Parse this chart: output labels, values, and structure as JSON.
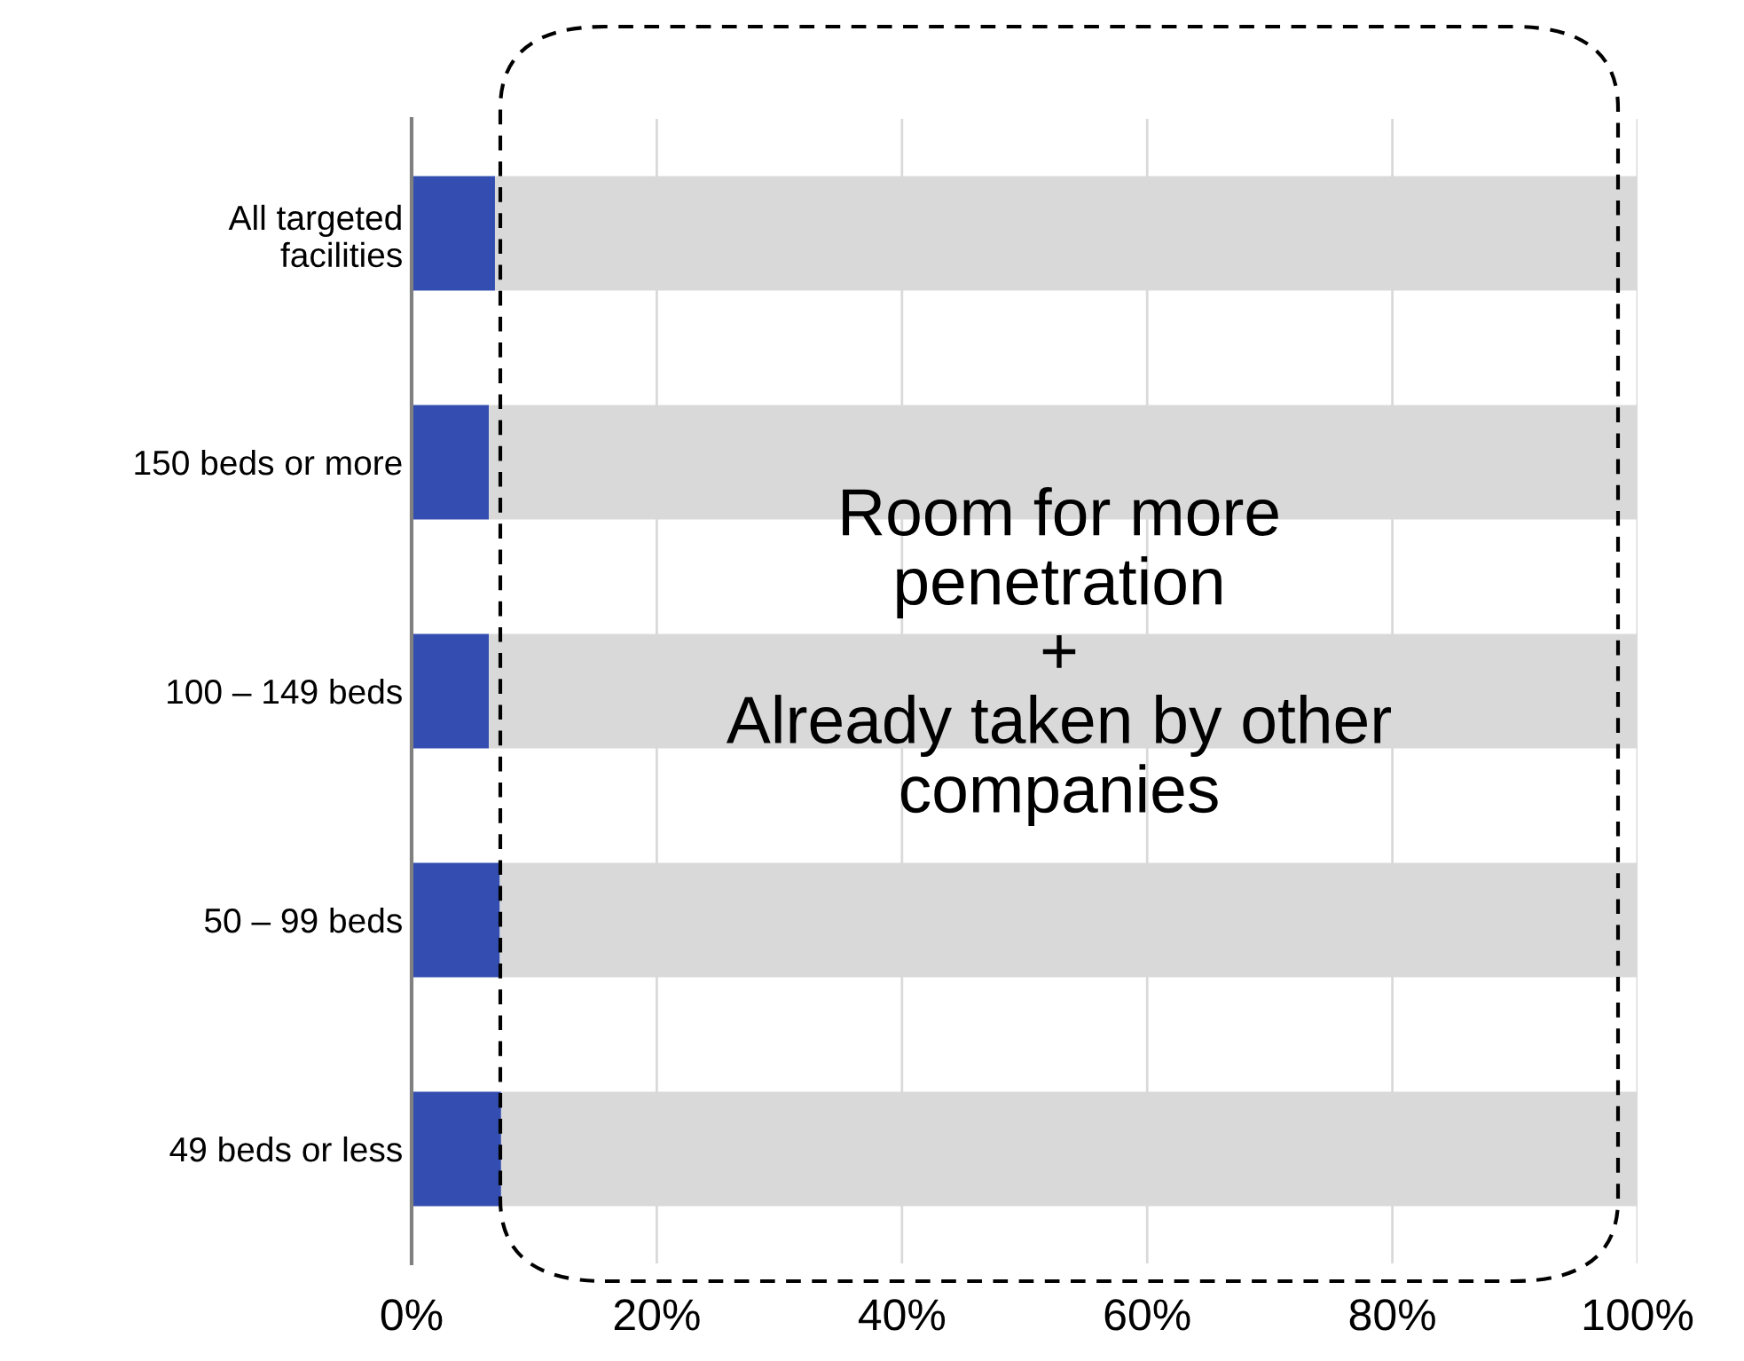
{
  "chart_data": {
    "type": "bar",
    "orientation": "horizontal",
    "stacked": true,
    "categories": [
      "All targeted\nfacilities",
      "150 beds or more",
      "100 – 149 beds",
      "50 – 99 beds",
      "49 beds or less"
    ],
    "series": [
      {
        "color": "#334eb0",
        "values": [
          6.8,
          6.3,
          6.3,
          7.2,
          7.3
        ]
      },
      {
        "color": "#d9d9d9",
        "values": [
          93.2,
          93.7,
          93.7,
          92.8,
          92.7
        ]
      }
    ],
    "xlim": [
      0,
      100
    ],
    "xticks": [
      {
        "value": 0,
        "label": "0%"
      },
      {
        "value": 20,
        "label": "20%"
      },
      {
        "value": 40,
        "label": "40%"
      },
      {
        "value": 60,
        "label": "60%"
      },
      {
        "value": 80,
        "label": "80%"
      },
      {
        "value": 100,
        "label": "100%"
      }
    ],
    "grid": "x",
    "annotations": [
      "Room for more\npenetration\n+\nAlready taken by other\ncompanies"
    ]
  }
}
